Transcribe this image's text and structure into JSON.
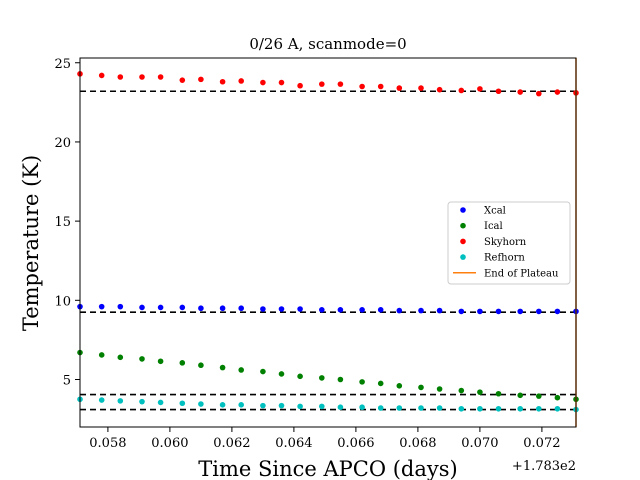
{
  "chart_data": {
    "type": "scatter",
    "title": "0/26 A, scanmode=0",
    "xlabel": "Time Since APCO (days)",
    "ylabel": "Temperature (K)",
    "x_offset_label": "+1.783e2",
    "xlim": [
      0.0571,
      0.0731
    ],
    "ylim": [
      2.0,
      25.3
    ],
    "xticks": [
      0.058,
      0.06,
      0.062,
      0.064,
      0.066,
      0.068,
      0.07,
      0.072
    ],
    "xtick_labels": [
      "0.058",
      "0.060",
      "0.062",
      "0.064",
      "0.066",
      "0.068",
      "0.070",
      "0.072"
    ],
    "yticks": [
      5,
      10,
      15,
      20,
      25
    ],
    "ytick_labels": [
      "5",
      "10",
      "15",
      "20",
      "25"
    ],
    "grid": false,
    "legend_position": "center-right",
    "x": [
      0.0571,
      0.0578,
      0.0584,
      0.0591,
      0.0597,
      0.0604,
      0.061,
      0.0617,
      0.0623,
      0.063,
      0.0636,
      0.0642,
      0.0649,
      0.0655,
      0.0662,
      0.0668,
      0.0674,
      0.0681,
      0.0687,
      0.0694,
      0.07,
      0.0706,
      0.0713,
      0.0719,
      0.0725,
      0.0731
    ],
    "series": [
      {
        "name": "Xcal",
        "color": "#0000ff",
        "marker": "dot",
        "values": [
          9.6,
          9.6,
          9.6,
          9.55,
          9.55,
          9.55,
          9.5,
          9.5,
          9.5,
          9.45,
          9.45,
          9.45,
          9.4,
          9.4,
          9.4,
          9.4,
          9.35,
          9.35,
          9.35,
          9.3,
          9.3,
          9.3,
          9.3,
          9.3,
          9.3,
          9.3
        ]
      },
      {
        "name": "Ical",
        "color": "#008000",
        "marker": "dot",
        "values": [
          6.7,
          6.55,
          6.4,
          6.3,
          6.15,
          6.05,
          5.9,
          5.75,
          5.6,
          5.5,
          5.35,
          5.2,
          5.1,
          5.0,
          4.85,
          4.75,
          4.6,
          4.5,
          4.4,
          4.3,
          4.2,
          4.1,
          4.0,
          3.95,
          3.85,
          3.75
        ]
      },
      {
        "name": "Skyhorn",
        "color": "#ff0000",
        "marker": "dot",
        "values": [
          24.3,
          24.2,
          24.1,
          24.1,
          24.1,
          23.9,
          23.95,
          23.8,
          23.85,
          23.75,
          23.75,
          23.55,
          23.65,
          23.65,
          23.5,
          23.5,
          23.4,
          23.4,
          23.3,
          23.25,
          23.35,
          23.2,
          23.15,
          23.05,
          23.15,
          23.1
        ]
      },
      {
        "name": "Refhorn",
        "color": "#00bfbf",
        "marker": "dot",
        "values": [
          3.75,
          3.7,
          3.65,
          3.6,
          3.55,
          3.5,
          3.45,
          3.4,
          3.4,
          3.35,
          3.35,
          3.3,
          3.3,
          3.25,
          3.25,
          3.2,
          3.2,
          3.2,
          3.2,
          3.15,
          3.15,
          3.15,
          3.15,
          3.15,
          3.15,
          3.1
        ]
      }
    ],
    "reference_lines": [
      23.2,
      9.25,
      4.05,
      3.1
    ],
    "vertical_marker": {
      "name": "End of Plateau",
      "color": "#ff7f0e",
      "x": 0.0731
    }
  }
}
